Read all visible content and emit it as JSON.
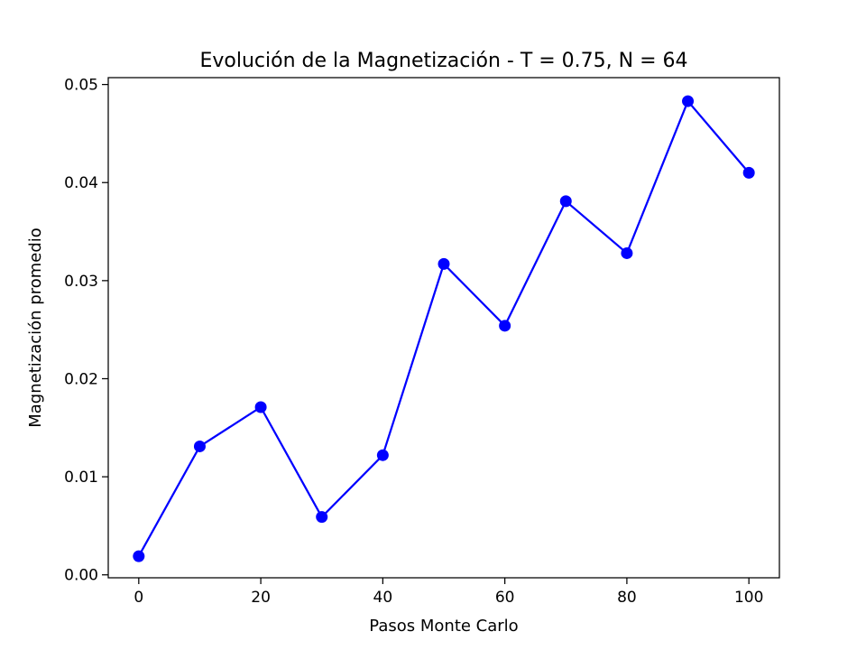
{
  "chart_data": {
    "type": "line",
    "title": "Evolución de la Magnetización - T = 0.75, N = 64",
    "xlabel": "Pasos Monte Carlo",
    "ylabel": "Magnetización promedio",
    "xlim": [
      -5,
      105
    ],
    "ylim": [
      -0.0003,
      0.0507
    ],
    "x_ticks": [
      0,
      20,
      40,
      60,
      80,
      100
    ],
    "x_tick_labels": [
      "0",
      "20",
      "40",
      "60",
      "80",
      "100"
    ],
    "y_ticks": [
      0.0,
      0.01,
      0.02,
      0.03,
      0.04,
      0.05
    ],
    "y_tick_labels": [
      "0.00",
      "0.01",
      "0.02",
      "0.03",
      "0.04",
      "0.05"
    ],
    "grid": false,
    "legend": null,
    "series": [
      {
        "color": "#0000ff",
        "marker": "circle",
        "x": [
          0,
          10,
          20,
          30,
          40,
          50,
          60,
          70,
          80,
          90,
          100
        ],
        "y": [
          0.0019,
          0.0131,
          0.0171,
          0.0059,
          0.0122,
          0.0317,
          0.0254,
          0.0381,
          0.0328,
          0.0483,
          0.041
        ]
      }
    ]
  }
}
